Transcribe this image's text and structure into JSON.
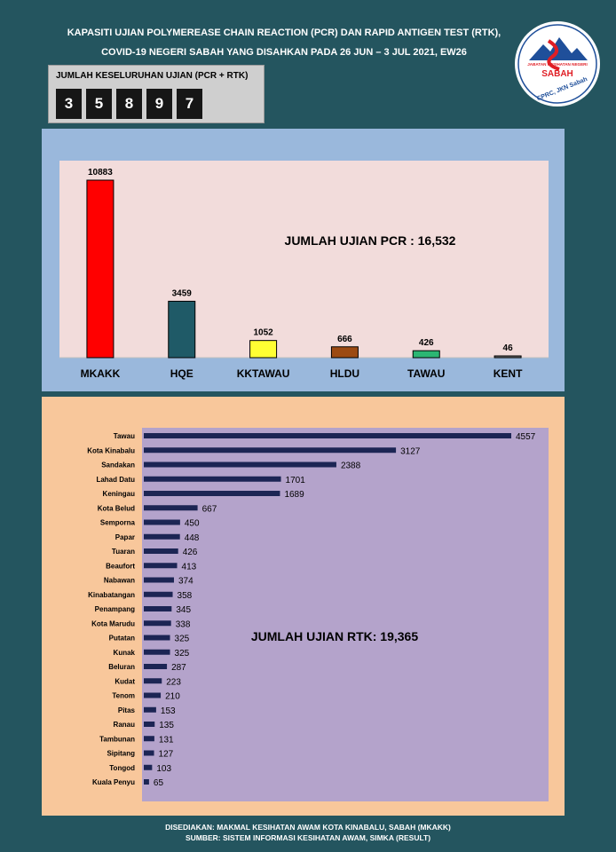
{
  "header": {
    "title_line1": "KAPASITI UJIAN POLYMEREASE CHAIN REACTION (PCR) DAN RAPID ANTIGEN TEST (RTK),",
    "title_line2": "COVID-19  NEGERI SABAH YANG DISAHKAN PADA 26 JUN – 3 JUL 2021, EW26"
  },
  "logo": {
    "top_text": "JABATAN KESIHATAN NEGERI",
    "name": "SABAH",
    "bottom_text": "CPRC, JKN Sabah"
  },
  "total_counter": {
    "label": "JUMLAH KESELURUHAN UJIAN (PCR + RTK)",
    "digits": [
      "3",
      "5",
      "8",
      "9",
      "7"
    ]
  },
  "chart_data": [
    {
      "type": "bar",
      "orientation": "vertical",
      "annotation": "JUMLAH UJIAN PCR : 16,532",
      "categories": [
        "MKAKK",
        "HQE",
        "KKTAWAU",
        "HLDU",
        "TAWAU",
        "KENT"
      ],
      "values": [
        10883,
        3459,
        1052,
        666,
        426,
        46
      ],
      "colors": [
        "#ff0000",
        "#1f5a67",
        "#ffff33",
        "#9c4a12",
        "#2bb673",
        "#6b6b6b"
      ],
      "ylim": [
        0,
        10883
      ],
      "grid": false,
      "legend": "none"
    },
    {
      "type": "bar",
      "orientation": "horizontal",
      "annotation": "JUMLAH UJIAN RTK: 19,365",
      "categories": [
        "Tawau",
        "Kota Kinabalu",
        "Sandakan",
        "Lahad Datu",
        "Keningau",
        "Kota Belud",
        "Semporna",
        "Papar",
        "Tuaran",
        "Beaufort",
        "Nabawan",
        "Kinabatangan",
        "Penampang",
        "Kota Marudu",
        "Putatan",
        "Kunak",
        "Beluran",
        "Kudat",
        "Tenom",
        "Pitas",
        "Ranau",
        "Tambunan",
        "Sipitang",
        "Tongod",
        "Kuala Penyu"
      ],
      "values": [
        4557,
        3127,
        2388,
        1701,
        1689,
        667,
        450,
        448,
        426,
        413,
        374,
        358,
        345,
        338,
        325,
        325,
        287,
        223,
        210,
        153,
        135,
        131,
        127,
        103,
        65
      ],
      "color": "#1c2554",
      "xlim": [
        0,
        4557
      ],
      "grid": false,
      "legend": "none"
    }
  ],
  "footer": {
    "line1": "DISEDIAKAN: MAKMAL KESIHATAN AWAM KOTA KINABALU, SABAH (MKAKK)",
    "line2": "SUMBER: SISTEM INFORMASI KESIHATAN AWAM, SIMKA (RESULT)"
  }
}
